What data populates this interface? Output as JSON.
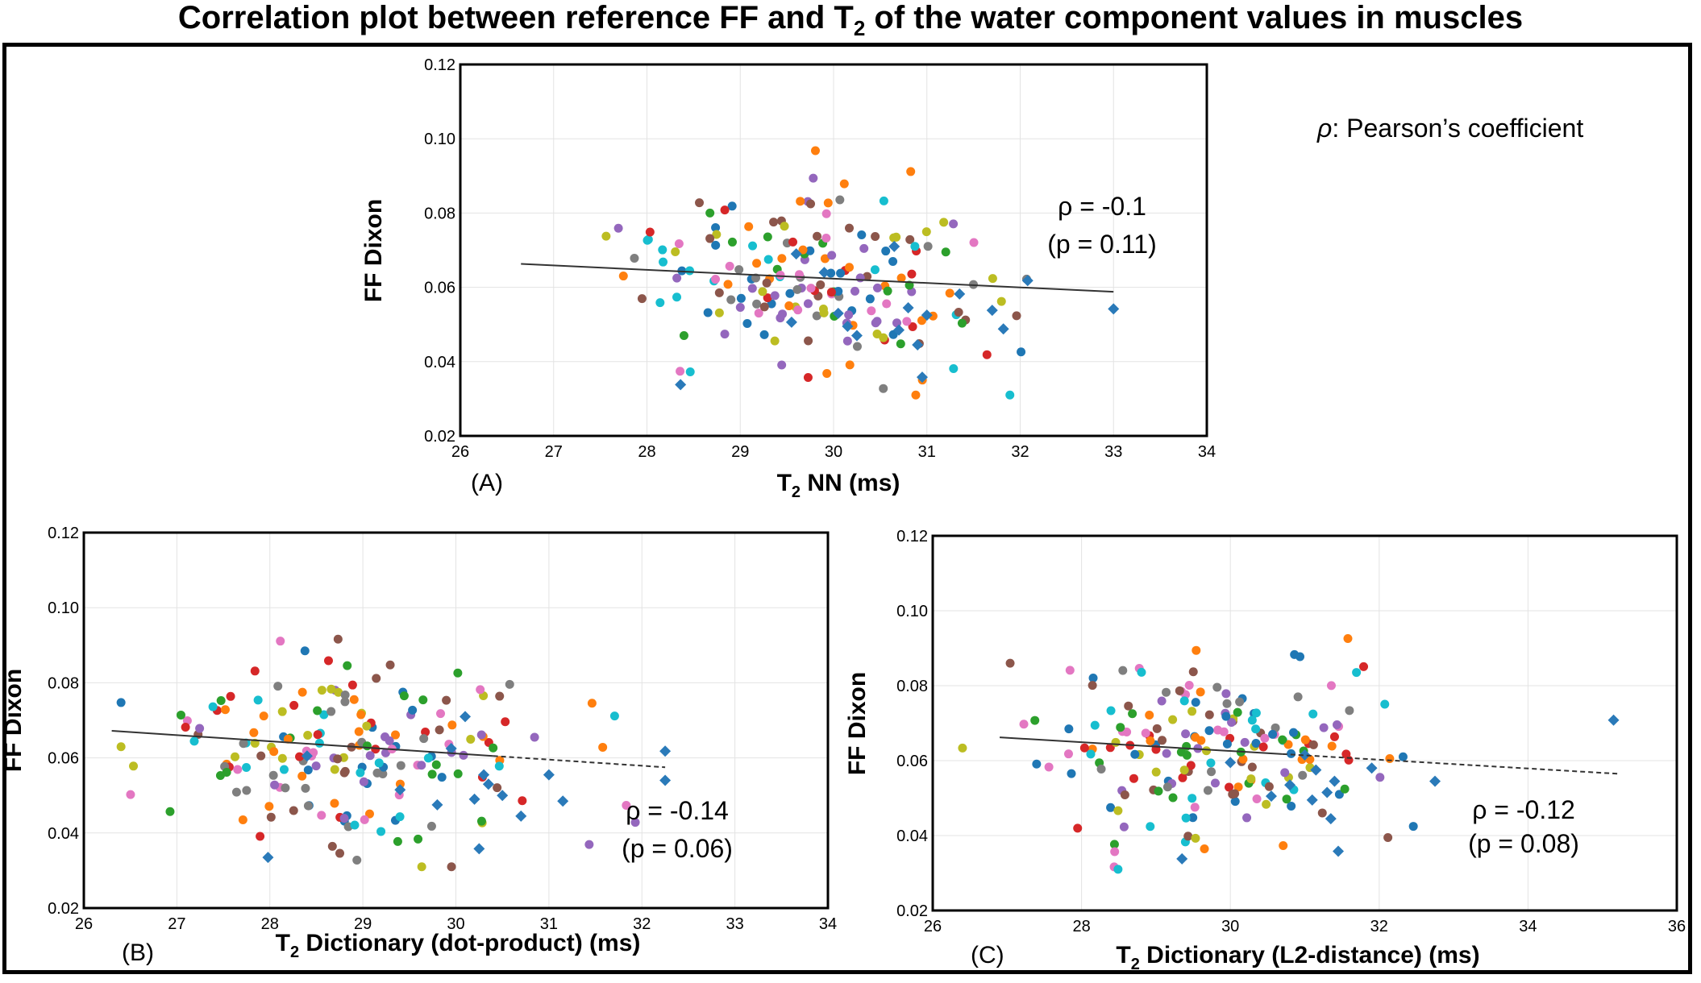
{
  "title": {
    "pre": "Correlation plot between reference FF and T",
    "sub": "2",
    "post": " of the water component values in muscles"
  },
  "legend_note": {
    "symbol": "ρ",
    "text": ": Pearson’s coefficient"
  },
  "palette": [
    "#1f77b4",
    "#ff7f0e",
    "#2ca02c",
    "#d62728",
    "#9467bd",
    "#8c564b",
    "#e377c2",
    "#7f7f7f",
    "#bcbd22",
    "#17becf"
  ],
  "chart_data": [
    {
      "id": "A",
      "type": "scatter",
      "panel_label": "(A)",
      "xlabel": {
        "pre": "T",
        "sub": "2",
        "post": " NN (ms)"
      },
      "ylabel": "FF Dixon",
      "xlim": [
        26,
        34
      ],
      "ylim": [
        0.02,
        0.12
      ],
      "xticks": [
        26,
        27,
        28,
        29,
        30,
        31,
        32,
        33,
        34
      ],
      "yticks": [
        0.02,
        0.04,
        0.06,
        0.08,
        0.1,
        0.12
      ],
      "xtick_labels": [
        "26",
        "27",
        "28",
        "29",
        "30",
        "31",
        "32",
        "33",
        "34"
      ],
      "ytick_labels": [
        "0.02",
        "0.04",
        "0.06",
        "0.08",
        "0.10",
        "0.12"
      ],
      "rho": "ρ = -0.1",
      "pvalue": "(p = 0.11)",
      "fit": {
        "x0": 26.65,
        "y0": 0.0663,
        "x1": 33.0,
        "y1": 0.0588,
        "dash_from": 33.0
      },
      "seed": 11,
      "series": [
        {
          "name": "dots",
          "marker": "circle",
          "count": 190,
          "x_mean": 29.8,
          "x_sd": 0.9,
          "y_mean": 0.062,
          "y_sd": 0.012
        },
        {
          "name": "reference",
          "marker": "diamond",
          "color": "#2a7ab9",
          "points": [
            [
              28.36,
              0.0338
            ],
            [
              29.55,
              0.0506
            ],
            [
              29.6,
              0.069
            ],
            [
              29.9,
              0.064
            ],
            [
              30.05,
              0.053
            ],
            [
              30.15,
              0.0495
            ],
            [
              30.25,
              0.047
            ],
            [
              30.65,
              0.071
            ],
            [
              30.7,
              0.0485
            ],
            [
              30.8,
              0.0545
            ],
            [
              30.9,
              0.0445
            ],
            [
              30.95,
              0.0358
            ],
            [
              31.0,
              0.0525
            ],
            [
              31.35,
              0.0582
            ],
            [
              31.7,
              0.0538
            ],
            [
              31.82,
              0.0488
            ],
            [
              32.08,
              0.0618
            ],
            [
              33.0,
              0.0542
            ]
          ]
        }
      ]
    },
    {
      "id": "B",
      "type": "scatter",
      "panel_label": "(B)",
      "xlabel": {
        "pre": "T",
        "sub": "2",
        "post": " Dictionary (dot-product) (ms)"
      },
      "ylabel": "FF Dixon",
      "xlim": [
        26,
        34
      ],
      "ylim": [
        0.02,
        0.12
      ],
      "xticks": [
        26,
        27,
        28,
        29,
        30,
        31,
        32,
        33,
        34
      ],
      "yticks": [
        0.02,
        0.04,
        0.06,
        0.08,
        0.1,
        0.12
      ],
      "xtick_labels": [
        "26",
        "27",
        "28",
        "29",
        "30",
        "31",
        "32",
        "33",
        "34"
      ],
      "ytick_labels": [
        "0.02",
        "0.04",
        "0.06",
        "0.08",
        "0.10",
        "0.12"
      ],
      "rho": "ρ = -0.14",
      "pvalue": "(p = 0.06)",
      "fit": {
        "x0": 26.3,
        "y0": 0.0672,
        "x1": 32.25,
        "y1": 0.0575,
        "dash_from": 30.4
      },
      "seed": 27,
      "series": [
        {
          "name": "dots",
          "marker": "circle",
          "count": 190,
          "x_mean": 28.9,
          "x_sd": 1.05,
          "y_mean": 0.062,
          "y_sd": 0.012
        },
        {
          "name": "reference",
          "marker": "diamond",
          "color": "#2a7ab9",
          "points": [
            [
              27.98,
              0.0335
            ],
            [
              28.4,
              0.0605
            ],
            [
              29.4,
              0.0515
            ],
            [
              29.8,
              0.0475
            ],
            [
              29.95,
              0.0625
            ],
            [
              30.1,
              0.071
            ],
            [
              30.2,
              0.049
            ],
            [
              30.25,
              0.0358
            ],
            [
              30.3,
              0.0555
            ],
            [
              30.35,
              0.053
            ],
            [
              30.5,
              0.05
            ],
            [
              30.7,
              0.0445
            ],
            [
              31.0,
              0.0555
            ],
            [
              31.15,
              0.0485
            ],
            [
              32.25,
              0.0618
            ],
            [
              32.25,
              0.054
            ]
          ]
        }
      ]
    },
    {
      "id": "C",
      "type": "scatter",
      "panel_label": "(C)",
      "xlabel": {
        "pre": "T",
        "sub": "2",
        "post": " Dictionary (L2-distance) (ms)"
      },
      "ylabel": "FF Dixon",
      "xlim": [
        26,
        36
      ],
      "ylim": [
        0.02,
        0.12
      ],
      "xticks": [
        26,
        28,
        30,
        32,
        34,
        36
      ],
      "yticks": [
        0.02,
        0.04,
        0.06,
        0.08,
        0.1,
        0.12
      ],
      "xtick_labels": [
        "26",
        "28",
        "30",
        "32",
        "34",
        "36"
      ],
      "ytick_labels": [
        "0.02",
        "0.04",
        "0.06",
        "0.08",
        "0.10",
        "0.12"
      ],
      "rho": "ρ = -0.12",
      "pvalue": "(p = 0.08)",
      "fit": {
        "x0": 26.9,
        "y0": 0.0662,
        "x1": 35.2,
        "y1": 0.0565,
        "dash_from": 30.7
      },
      "seed": 53,
      "series": [
        {
          "name": "dots",
          "marker": "circle",
          "count": 190,
          "x_mean": 29.7,
          "x_sd": 1.15,
          "y_mean": 0.062,
          "y_sd": 0.012
        },
        {
          "name": "reference",
          "marker": "diamond",
          "color": "#2a7ab9",
          "points": [
            [
              29.35,
              0.0338
            ],
            [
              30.0,
              0.0595
            ],
            [
              30.55,
              0.0505
            ],
            [
              30.8,
              0.0535
            ],
            [
              31.0,
              0.0615
            ],
            [
              31.1,
              0.0495
            ],
            [
              31.15,
              0.0575
            ],
            [
              31.3,
              0.0515
            ],
            [
              31.35,
              0.0445
            ],
            [
              31.4,
              0.0545
            ],
            [
              31.45,
              0.0358
            ],
            [
              31.9,
              0.058
            ],
            [
              32.75,
              0.0545
            ],
            [
              35.15,
              0.0708
            ]
          ]
        }
      ]
    }
  ]
}
